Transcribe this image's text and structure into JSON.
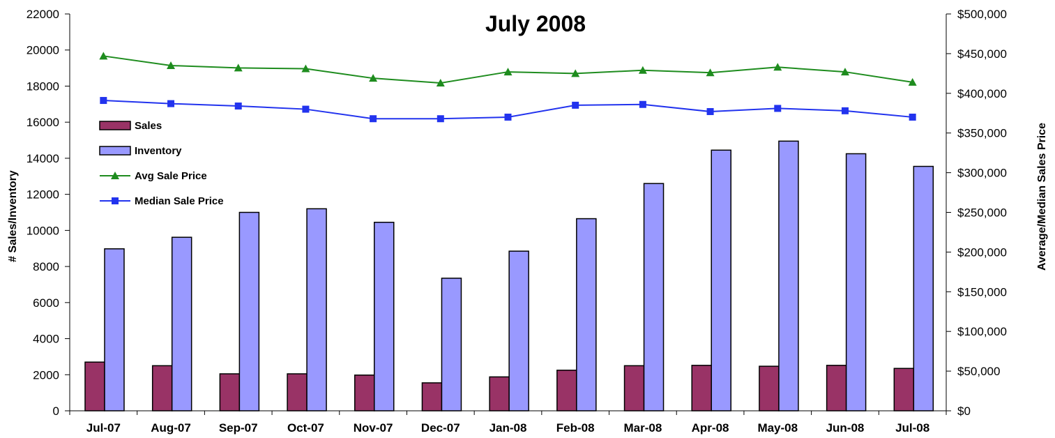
{
  "chart_data": {
    "type": "bar",
    "title": "July 2008",
    "categories": [
      "Jul-07",
      "Aug-07",
      "Sep-07",
      "Oct-07",
      "Nov-07",
      "Dec-07",
      "Jan-08",
      "Feb-08",
      "Mar-08",
      "Apr-08",
      "May-08",
      "Jun-08",
      "Jul-08"
    ],
    "ylabel": "# Sales/Inventory",
    "y2label": "Average/Median Sales Price",
    "ylim": [
      0,
      22000
    ],
    "y2lim": [
      0,
      500000
    ],
    "yticks": [
      "0",
      "2000",
      "4000",
      "6000",
      "8000",
      "10000",
      "12000",
      "14000",
      "16000",
      "18000",
      "20000",
      "22000"
    ],
    "y2ticks": [
      "$0",
      "$50,000",
      "$100,000",
      "$150,000",
      "$200,000",
      "$250,000",
      "$300,000",
      "$350,000",
      "$400,000",
      "$450,000",
      "$500,000"
    ],
    "legend_position": "upper-left",
    "series": [
      {
        "name": "Sales",
        "kind": "bar",
        "axis": "left",
        "color": "#993366",
        "values": [
          2700,
          2500,
          2050,
          2050,
          1980,
          1550,
          1880,
          2250,
          2500,
          2520,
          2470,
          2520,
          2350
        ]
      },
      {
        "name": "Inventory",
        "kind": "bar",
        "axis": "left",
        "color": "#9999ff",
        "values": [
          8980,
          9620,
          11000,
          11200,
          10450,
          7350,
          8850,
          10650,
          12600,
          14450,
          14950,
          14250,
          13550
        ]
      },
      {
        "name": "Avg Sale Price",
        "kind": "line",
        "axis": "right",
        "color": "#1e8c1e",
        "marker": "triangle",
        "values": [
          447000,
          435000,
          432000,
          431000,
          419000,
          413000,
          427000,
          425000,
          429000,
          426000,
          433000,
          427000,
          414000
        ]
      },
      {
        "name": "Median Sale Price",
        "kind": "line",
        "axis": "right",
        "color": "#2233ee",
        "marker": "square",
        "values": [
          391000,
          387000,
          384000,
          380000,
          368000,
          368000,
          370000,
          385000,
          386000,
          377000,
          381000,
          378000,
          370000
        ]
      }
    ]
  }
}
